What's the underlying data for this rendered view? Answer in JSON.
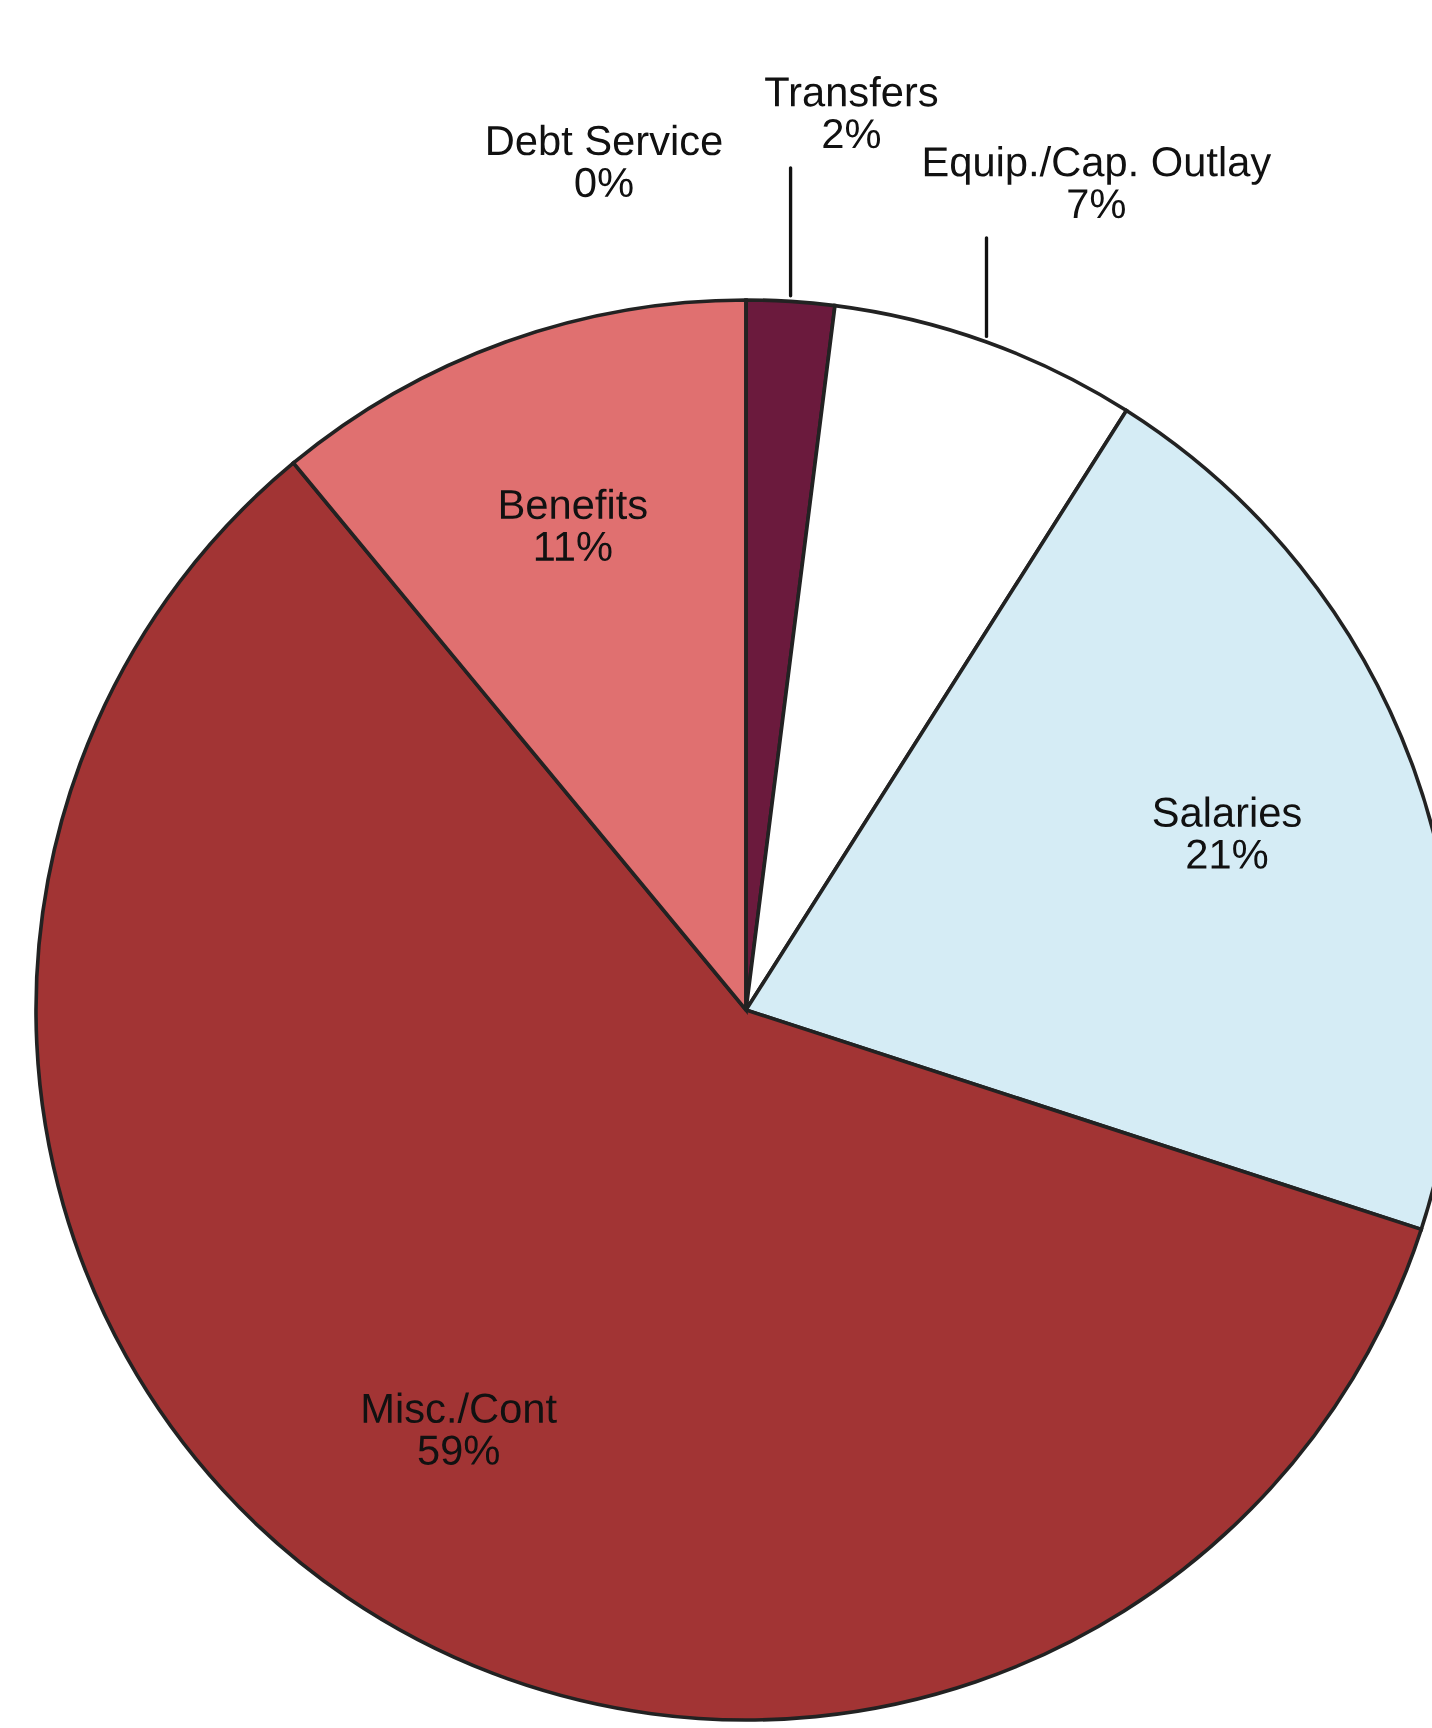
{
  "chart_data": {
    "type": "pie",
    "categories": [
      "Transfers",
      "Equip./Cap. Outlay",
      "Salaries",
      "Misc./Cont",
      "Benefits",
      "Debt Service"
    ],
    "values": [
      2,
      7,
      21,
      59,
      11,
      0
    ],
    "colors": [
      "#6b1a3d",
      "#ffffff",
      "#d5ecf5",
      "#a23434",
      "#e07070",
      "#4a1030"
    ],
    "value_labels": [
      "2%",
      "7%",
      "21%",
      "59%",
      "11%",
      "0%"
    ]
  }
}
